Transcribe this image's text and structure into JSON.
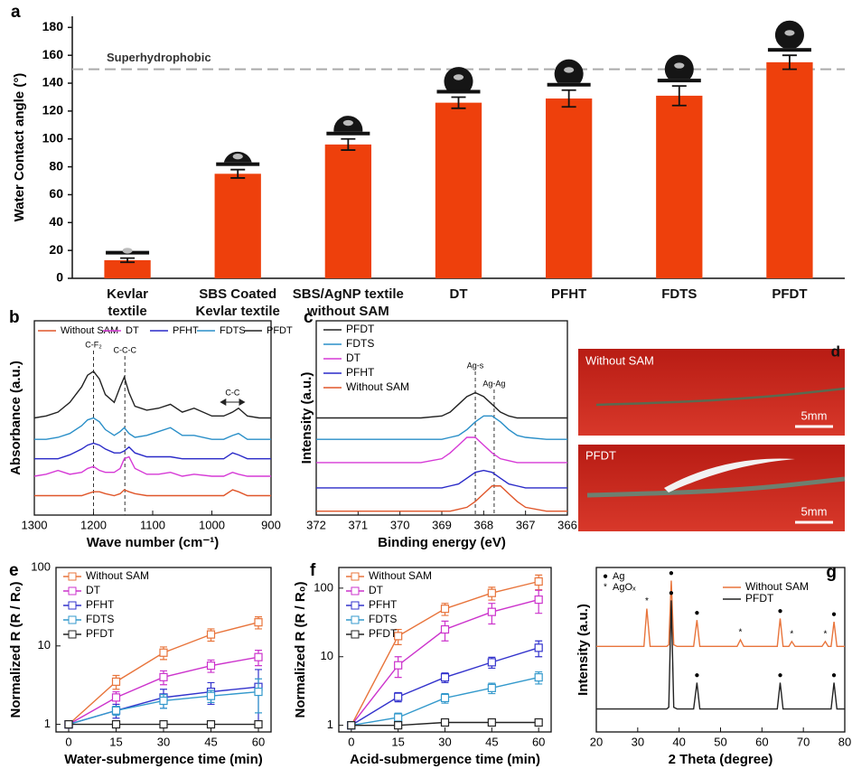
{
  "chart_data": [
    {
      "type": "bar",
      "panel_label": "a",
      "ylabel": "Water Contact angle (°)",
      "categories": [
        "Kevlar\ntextile",
        "SBS Coated\nKevlar textile",
        "SBS/AgNP textile\nwithout SAM",
        "DT",
        "PFHT",
        "FDTS",
        "PFDT"
      ],
      "values": [
        13,
        75,
        96,
        126,
        129,
        131,
        155
      ],
      "errors": [
        1.5,
        3,
        4,
        4,
        6,
        7,
        5
      ],
      "color": "#ee400c",
      "ylim": [
        0,
        188
      ],
      "yticks": [
        0,
        20,
        40,
        60,
        80,
        100,
        120,
        140,
        160,
        180
      ],
      "reference_line": {
        "value": 150,
        "label": "Superhydrophobic"
      }
    },
    {
      "type": "line",
      "panel_label": "b",
      "xlabel": "Wave number (cm⁻¹)",
      "ylabel": "Absorbance (a.u.)",
      "x": [
        1300,
        1280,
        1260,
        1240,
        1220,
        1210,
        1200,
        1190,
        1180,
        1165,
        1155,
        1148,
        1140,
        1130,
        1110,
        1090,
        1070,
        1050,
        1030,
        1000,
        980,
        965,
        955,
        940,
        920,
        900
      ],
      "xlim": [
        1300,
        900
      ],
      "xticks": [
        1300,
        1200,
        1100,
        1000,
        900
      ],
      "ylim": [
        0,
        10
      ],
      "legend": "top",
      "series": [
        {
          "name": "Without SAM",
          "color": "#e0562a",
          "values": [
            1.0,
            1.0,
            1.0,
            1.0,
            1.0,
            1.1,
            1.2,
            1.2,
            1.1,
            1.0,
            1.1,
            1.3,
            1.2,
            1.1,
            1.0,
            1.0,
            1.0,
            1.0,
            1.0,
            1.0,
            1.0,
            1.3,
            1.2,
            1.0,
            1.0,
            1.0
          ]
        },
        {
          "name": "DT",
          "color": "#d63ad6",
          "values": [
            2.0,
            2.1,
            2.3,
            2.1,
            2.2,
            2.4,
            2.5,
            2.3,
            2.2,
            2.2,
            2.4,
            2.9,
            3.0,
            2.4,
            2.1,
            2.1,
            2.2,
            2.0,
            2.1,
            2.0,
            2.0,
            2.2,
            2.1,
            2.0,
            2.0,
            2.0
          ]
        },
        {
          "name": "PFHT",
          "color": "#2a2ac8",
          "values": [
            2.9,
            2.9,
            2.9,
            3.1,
            3.4,
            3.6,
            3.7,
            3.6,
            3.4,
            3.2,
            3.2,
            3.3,
            3.5,
            3.2,
            3.0,
            3.0,
            3.0,
            2.9,
            2.9,
            2.9,
            2.9,
            3.2,
            3.1,
            2.9,
            2.9,
            2.9
          ]
        },
        {
          "name": "FDTS",
          "color": "#2a8fc8",
          "values": [
            3.9,
            3.9,
            4.0,
            4.2,
            4.6,
            4.9,
            5.0,
            4.8,
            4.4,
            4.1,
            4.3,
            4.5,
            4.2,
            4.0,
            4.1,
            4.3,
            4.5,
            4.1,
            4.1,
            3.9,
            3.9,
            4.1,
            4.2,
            3.9,
            3.9,
            3.9
          ]
        },
        {
          "name": "PFDT",
          "color": "#222222",
          "values": [
            5.0,
            5.1,
            5.3,
            5.8,
            6.6,
            7.2,
            7.4,
            7.0,
            6.2,
            5.8,
            6.6,
            7.1,
            6.3,
            5.6,
            5.4,
            5.5,
            5.7,
            5.3,
            5.5,
            5.1,
            5.1,
            5.3,
            5.5,
            5.1,
            5.0,
            5.0
          ]
        }
      ],
      "reference_lines": [
        {
          "x": 1200,
          "label": "C-F₂"
        },
        {
          "x": 1147,
          "label": "C-C-C"
        }
      ],
      "range_annotation": {
        "x": [
          985,
          945
        ],
        "label": "C-C"
      }
    },
    {
      "type": "line",
      "panel_label": "c",
      "xlabel": "Binding energy (eV)",
      "ylabel": "Intensity (a.u.)",
      "x": [
        372,
        371,
        370,
        369.5,
        369,
        368.8,
        368.6,
        368.4,
        368.2,
        368.0,
        367.8,
        367.6,
        367.4,
        367.2,
        367,
        366.5,
        366
      ],
      "xlim": [
        372,
        366
      ],
      "xticks": [
        372,
        371,
        370,
        369,
        368,
        367,
        366
      ],
      "ylim": [
        0,
        10
      ],
      "legend": "upper left",
      "series": [
        {
          "name": "PFDT",
          "color": "#222222",
          "values": [
            5.0,
            5.0,
            5.0,
            5.0,
            5.1,
            5.3,
            5.7,
            6.1,
            6.3,
            6.1,
            5.7,
            5.3,
            5.1,
            5.0,
            5.0,
            5.0,
            5.0
          ]
        },
        {
          "name": "FDTS",
          "color": "#2a8fc8",
          "values": [
            3.9,
            3.9,
            3.9,
            3.9,
            3.9,
            4.0,
            4.1,
            4.4,
            4.8,
            5.1,
            5.1,
            4.8,
            4.4,
            4.1,
            4.0,
            3.9,
            3.9
          ]
        },
        {
          "name": "DT",
          "color": "#d63ad6",
          "values": [
            2.7,
            2.7,
            2.7,
            2.7,
            2.9,
            3.2,
            3.6,
            4.0,
            4.0,
            3.6,
            3.2,
            2.9,
            2.8,
            2.7,
            2.7,
            2.7,
            2.7
          ]
        },
        {
          "name": "PFHT",
          "color": "#2a2ac8",
          "values": [
            1.4,
            1.4,
            1.4,
            1.4,
            1.4,
            1.5,
            1.6,
            1.9,
            2.2,
            2.3,
            2.2,
            1.9,
            1.6,
            1.5,
            1.4,
            1.4,
            1.4
          ]
        },
        {
          "name": "Without SAM",
          "color": "#e0562a",
          "values": [
            0.2,
            0.2,
            0.2,
            0.2,
            0.2,
            0.2,
            0.3,
            0.4,
            0.7,
            1.1,
            1.5,
            1.5,
            1.1,
            0.7,
            0.4,
            0.2,
            0.2
          ]
        }
      ],
      "reference_lines": [
        {
          "x": 368.2,
          "label": "Ag-s"
        },
        {
          "x": 367.75,
          "label": "Ag-Ag"
        }
      ]
    },
    {
      "type": "line",
      "panel_label": "e",
      "xlabel": "Water-submergence time (min)",
      "ylabel": "Normalized R (R / R₀)",
      "x": [
        0,
        15,
        30,
        45,
        60
      ],
      "xlim": [
        -4,
        64
      ],
      "xticks": [
        0,
        15,
        30,
        45,
        60
      ],
      "ylim": [
        0.8,
        100
      ],
      "yticks": [
        1,
        10,
        100
      ],
      "log_y": true,
      "marker": "square",
      "legend": "upper left",
      "series": [
        {
          "name": "Without SAM",
          "color": "#e8743b",
          "values": [
            1,
            3.5,
            8.2,
            14,
            20
          ],
          "errors": [
            0.1,
            0.7,
            1.5,
            2.5,
            3.5
          ]
        },
        {
          "name": "DT",
          "color": "#cc33cc",
          "values": [
            1,
            2.2,
            4,
            5.6,
            7.2
          ],
          "errors": [
            0.1,
            0.4,
            0.8,
            1.0,
            1.6
          ]
        },
        {
          "name": "PFHT",
          "color": "#3333cc",
          "values": [
            1,
            1.5,
            2.2,
            2.6,
            3.0
          ],
          "errors": [
            0.05,
            0.3,
            0.6,
            0.8,
            2
          ]
        },
        {
          "name": "FDTS",
          "color": "#3399cc",
          "values": [
            1,
            1.5,
            2.0,
            2.3,
            2.6
          ],
          "errors": [
            0.05,
            0.2,
            0.4,
            0.4,
            1.2
          ]
        },
        {
          "name": "PFDT",
          "color": "#222222",
          "values": [
            1,
            1,
            1,
            1,
            1
          ],
          "errors": [
            0.05,
            0.08,
            0.08,
            0.08,
            0.08
          ]
        }
      ]
    },
    {
      "type": "line",
      "panel_label": "f",
      "xlabel": "Acid-submergence time (min)",
      "ylabel": "Normalized R (R / R₀)",
      "x": [
        0,
        15,
        30,
        45,
        60
      ],
      "xlim": [
        -4,
        64
      ],
      "xticks": [
        0,
        15,
        30,
        45,
        60
      ],
      "ylim": [
        0.8,
        200
      ],
      "yticks": [
        1,
        10,
        100
      ],
      "log_y": true,
      "marker": "square",
      "legend": "upper left",
      "series": [
        {
          "name": "Without SAM",
          "color": "#e8743b",
          "values": [
            1,
            20,
            50,
            85,
            125
          ],
          "errors": [
            0.1,
            5,
            10,
            18,
            30
          ]
        },
        {
          "name": "DT",
          "color": "#cc33cc",
          "values": [
            1,
            7.5,
            25,
            45,
            68
          ],
          "errors": [
            0.1,
            2.5,
            8,
            15,
            25
          ]
        },
        {
          "name": "PFHT",
          "color": "#3333cc",
          "values": [
            1,
            2.6,
            5,
            8.3,
            13.5
          ],
          "errors": [
            0.1,
            0.4,
            0.8,
            1.5,
            3.5
          ]
        },
        {
          "name": "FDTS",
          "color": "#3399cc",
          "values": [
            1,
            1.3,
            2.5,
            3.5,
            5
          ],
          "errors": [
            0.05,
            0.2,
            0.4,
            0.6,
            1
          ]
        },
        {
          "name": "PFDT",
          "color": "#222222",
          "values": [
            1,
            1,
            1.1,
            1.1,
            1.1
          ],
          "errors": [
            0.05,
            0.05,
            0.05,
            0.05,
            0.05
          ]
        }
      ]
    },
    {
      "type": "line",
      "panel_label": "g",
      "xlabel": "2 Theta (degree)",
      "ylabel": "Intensity (a.u.)",
      "x": [
        20,
        30,
        31.5,
        32.2,
        33,
        37,
        37.5,
        38.1,
        38.7,
        39.5,
        43.5,
        44.3,
        45,
        54,
        54.8,
        55.6,
        63.7,
        64.4,
        65.1,
        66.5,
        67.2,
        68,
        74.5,
        75.3,
        76,
        76.7,
        77.4,
        78.1,
        80
      ],
      "xlim": [
        20,
        80
      ],
      "xticks": [
        20,
        30,
        40,
        50,
        60,
        70,
        80
      ],
      "ylim": [
        0,
        10
      ],
      "legend": "upper right",
      "series": [
        {
          "name": "Without SAM",
          "color": "#e8743b",
          "values": [
            5.2,
            5.2,
            5.2,
            7.5,
            5.2,
            5.2,
            5.3,
            9.2,
            5.3,
            5.2,
            5.2,
            6.8,
            5.2,
            5.2,
            5.6,
            5.2,
            5.2,
            6.9,
            5.2,
            5.2,
            5.5,
            5.2,
            5.2,
            5.5,
            5.2,
            5.2,
            6.7,
            5.2,
            5.2
          ]
        },
        {
          "name": "PFDT",
          "color": "#222222",
          "values": [
            1.4,
            1.4,
            1.4,
            1.4,
            1.4,
            1.4,
            1.5,
            8.0,
            1.5,
            1.4,
            1.4,
            3.0,
            1.4,
            1.4,
            1.4,
            1.4,
            1.4,
            3.0,
            1.4,
            1.4,
            1.4,
            1.4,
            1.4,
            1.4,
            1.4,
            1.4,
            3.0,
            1.4,
            1.4
          ]
        }
      ],
      "peak_markers": [
        {
          "symbol": "●",
          "name": "Ag",
          "x": [
            38.1,
            44.3,
            64.4,
            77.4
          ]
        },
        {
          "symbol": "*",
          "name": "AgOₓ",
          "x": [
            32.2,
            54.8,
            67.2,
            75.3
          ]
        }
      ]
    }
  ],
  "photos": {
    "panel_label": "d",
    "images": [
      {
        "label": "Without SAM",
        "scale_bar": "5mm"
      },
      {
        "label": "PFDT",
        "scale_bar": "5mm"
      }
    ]
  }
}
